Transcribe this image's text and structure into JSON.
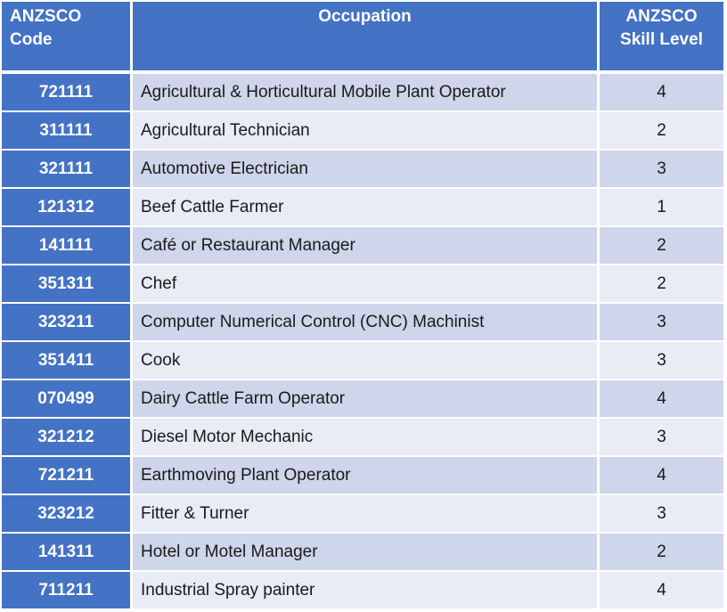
{
  "header": {
    "code_line1": "ANZSCO",
    "code_line2": "Code",
    "occupation": "Occupation",
    "skill_line1": "ANZSCO",
    "skill_line2": "Skill Level"
  },
  "rows": [
    {
      "code": "721111",
      "occupation": "Agricultural & Horticultural Mobile Plant Operator",
      "skill": "4"
    },
    {
      "code": "311111",
      "occupation": "Agricultural Technician",
      "skill": "2"
    },
    {
      "code": "321111",
      "occupation": "Automotive Electrician",
      "skill": "3"
    },
    {
      "code": "121312",
      "occupation": "Beef Cattle Farmer",
      "skill": "1"
    },
    {
      "code": "141111",
      "occupation": "Café or Restaurant Manager",
      "skill": "2"
    },
    {
      "code": "351311",
      "occupation": "Chef",
      "skill": "2"
    },
    {
      "code": "323211",
      "occupation": "Computer Numerical Control (CNC) Machinist",
      "skill": "3"
    },
    {
      "code": "351411",
      "occupation": "Cook",
      "skill": "3"
    },
    {
      "code": "070499",
      "occupation": "Dairy Cattle Farm Operator",
      "skill": "4"
    },
    {
      "code": "321212",
      "occupation": "Diesel Motor Mechanic",
      "skill": "3"
    },
    {
      "code": "721211",
      "occupation": "Earthmoving Plant Operator",
      "skill": "4"
    },
    {
      "code": "323212",
      "occupation": "Fitter & Turner",
      "skill": "3"
    },
    {
      "code": "141311",
      "occupation": "Hotel or Motel Manager",
      "skill": "2"
    },
    {
      "code": "711211",
      "occupation": "Industrial Spray painter",
      "skill": "4"
    }
  ],
  "colors": {
    "header_blue": "#4472c4",
    "row_dark": "#cfd5ea",
    "row_light": "#e9ebf5"
  }
}
